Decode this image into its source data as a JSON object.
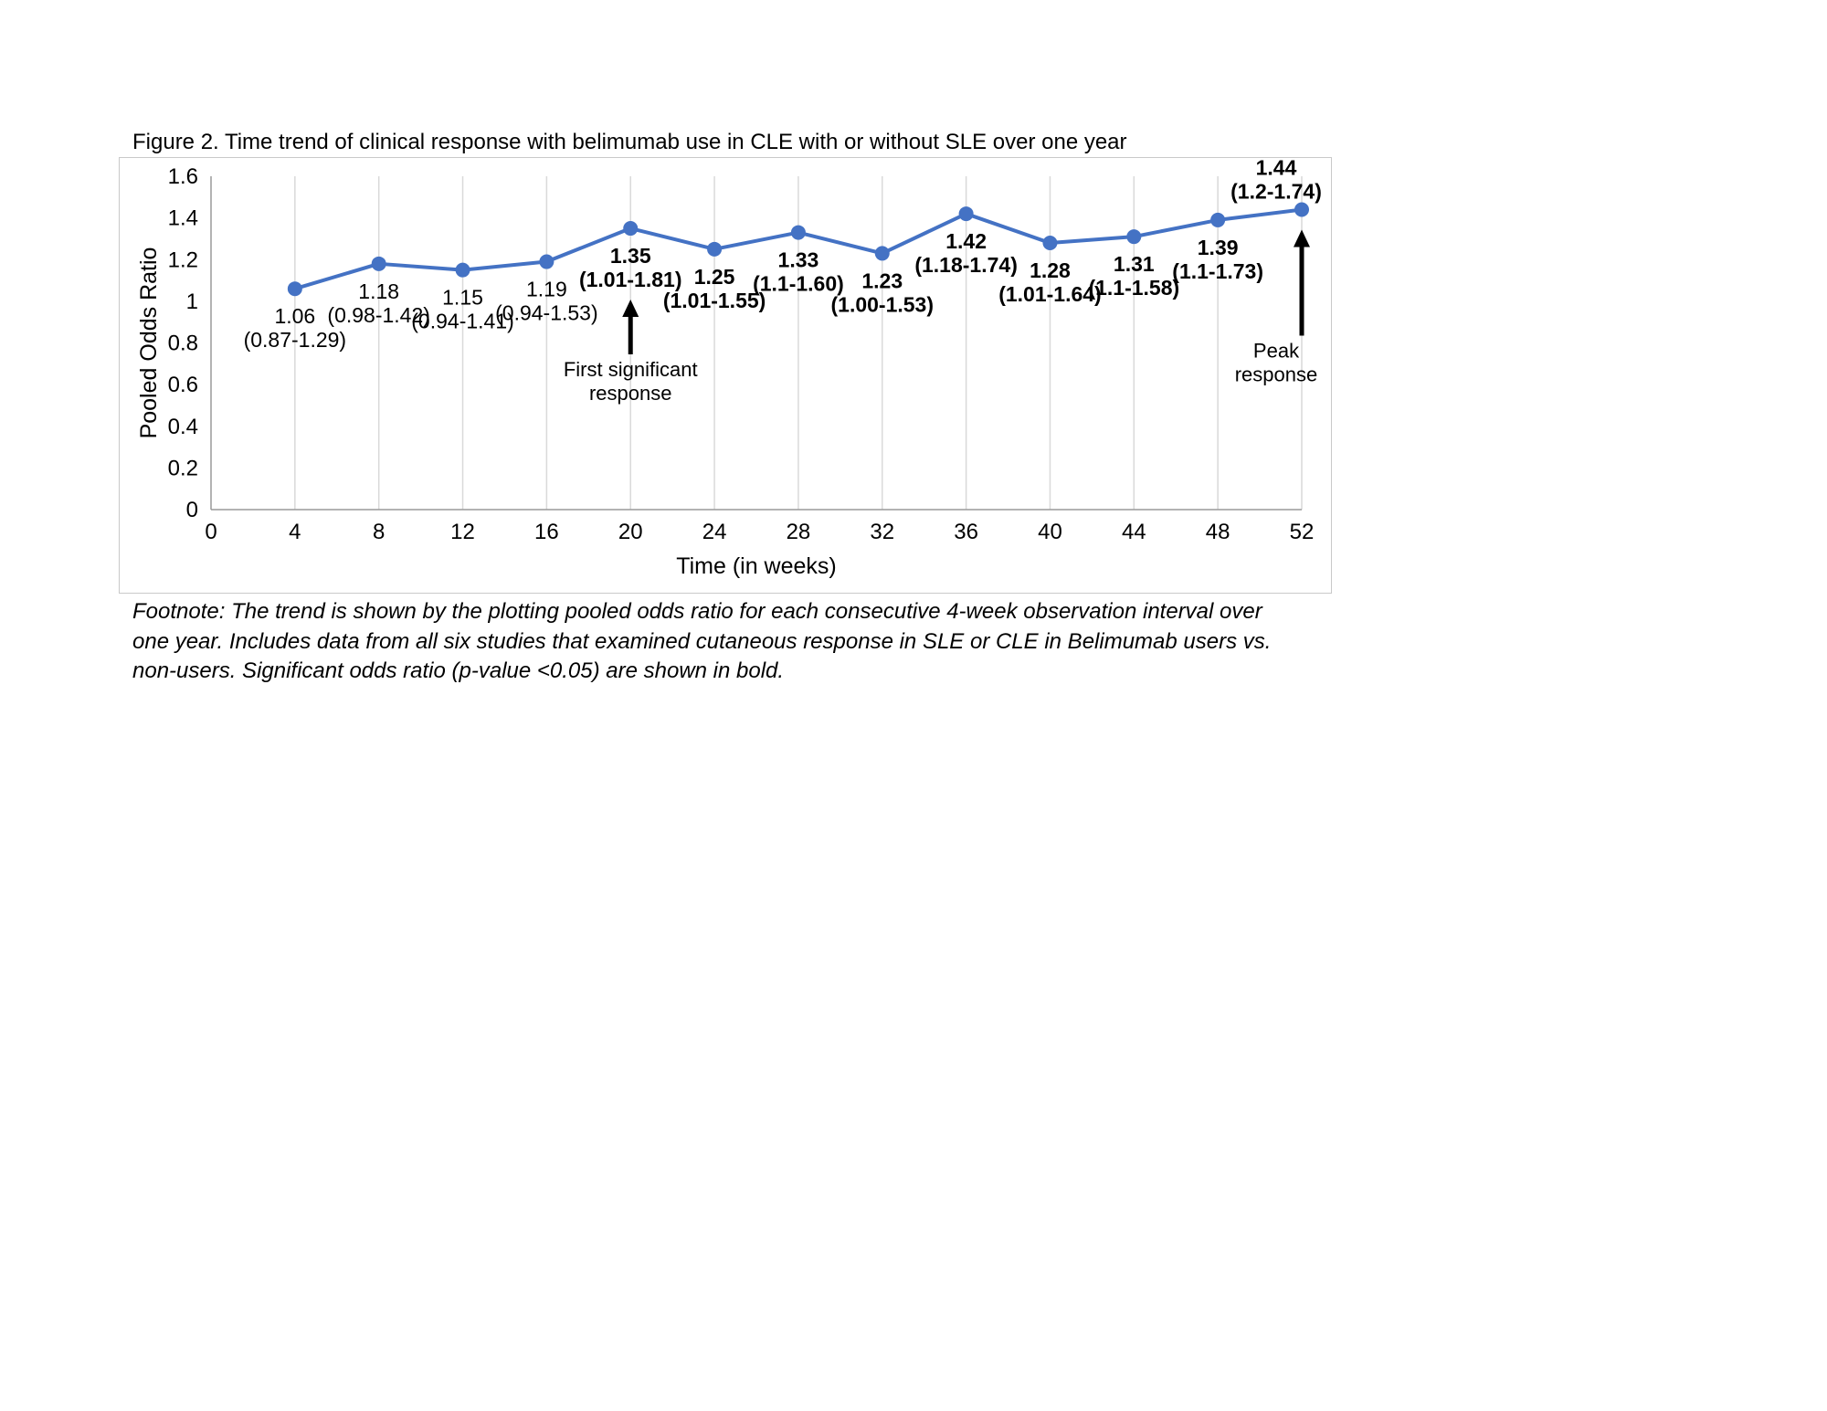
{
  "figure": {
    "title": "Figure 2. Time trend of clinical response with belimumab use in CLE with or without SLE over one year",
    "footnote": "Footnote: The trend is shown by the plotting pooled odds ratio for each consecutive 4-week observation interval over one year. Includes data from all six studies that examined cutaneous response in SLE or CLE in Belimumab users vs. non-users. Significant odds ratio (p-value <0.05) are shown in bold."
  },
  "chart_data": {
    "type": "line",
    "title": "Figure 2. Time trend of clinical response with belimumab use in CLE with or without SLE over one year",
    "xlabel": "Time (in weeks)",
    "ylabel": "Pooled Odds Ratio",
    "xlim": [
      0,
      52
    ],
    "ylim": [
      0,
      1.6
    ],
    "x_ticks": [
      0,
      4,
      8,
      12,
      16,
      20,
      24,
      28,
      32,
      36,
      40,
      44,
      48,
      52
    ],
    "y_ticks": [
      "0",
      "0.2",
      "0.4",
      "0.6",
      "0.8",
      "1",
      "1.2",
      "1.4",
      "1.6"
    ],
    "grid": "vertical-only",
    "legend": "none",
    "line_color": "#4472c4",
    "gridline_color": "#d9d9d9",
    "axis_color": "#9a9a9a",
    "points": [
      {
        "week": 4,
        "or": 1.06,
        "label": "1.06",
        "ci": "(0.87-1.29)",
        "bold": false,
        "label_position": "below"
      },
      {
        "week": 8,
        "or": 1.18,
        "label": "1.18",
        "ci": "(0.98-1.42)",
        "bold": false,
        "label_position": "below"
      },
      {
        "week": 12,
        "or": 1.15,
        "label": "1.15",
        "ci": "(0.94-1.41)",
        "bold": false,
        "label_position": "below"
      },
      {
        "week": 16,
        "or": 1.19,
        "label": "1.19",
        "ci": "(0.94-1.53)",
        "bold": false,
        "label_position": "below"
      },
      {
        "week": 20,
        "or": 1.35,
        "label": "1.35",
        "ci": "(1.01-1.81)",
        "bold": true,
        "label_position": "below"
      },
      {
        "week": 24,
        "or": 1.25,
        "label": "1.25",
        "ci": "(1.01-1.55)",
        "bold": true,
        "label_position": "below"
      },
      {
        "week": 28,
        "or": 1.33,
        "label": "1.33",
        "ci": "(1.1-1.60)",
        "bold": true,
        "label_position": "below"
      },
      {
        "week": 32,
        "or": 1.23,
        "label": "1.23",
        "ci": "(1.00-1.53)",
        "bold": true,
        "label_position": "below"
      },
      {
        "week": 36,
        "or": 1.42,
        "label": "1.42",
        "ci": "(1.18-1.74)",
        "bold": true,
        "label_position": "below"
      },
      {
        "week": 40,
        "or": 1.28,
        "label": "1.28",
        "ci": "(1.01-1.64)",
        "bold": true,
        "label_position": "below"
      },
      {
        "week": 44,
        "or": 1.31,
        "label": "1.31",
        "ci": "(1.1-1.58)",
        "bold": true,
        "label_position": "below"
      },
      {
        "week": 48,
        "or": 1.39,
        "label": "1.39",
        "ci": "(1.1-1.73)",
        "bold": true,
        "label_position": "below"
      },
      {
        "week": 52,
        "or": 1.44,
        "label": "1.44",
        "ci": "(1.2-1.74)",
        "bold": true,
        "label_position": "above",
        "label_dx": -28
      }
    ],
    "annotations": [
      {
        "week": 20,
        "arrow": "up",
        "text_lines": [
          "First significant",
          "response"
        ],
        "text_dx": 0
      },
      {
        "week": 52,
        "arrow": "up",
        "text_lines": [
          "Peak",
          "response"
        ],
        "text_dx": -28
      }
    ]
  }
}
